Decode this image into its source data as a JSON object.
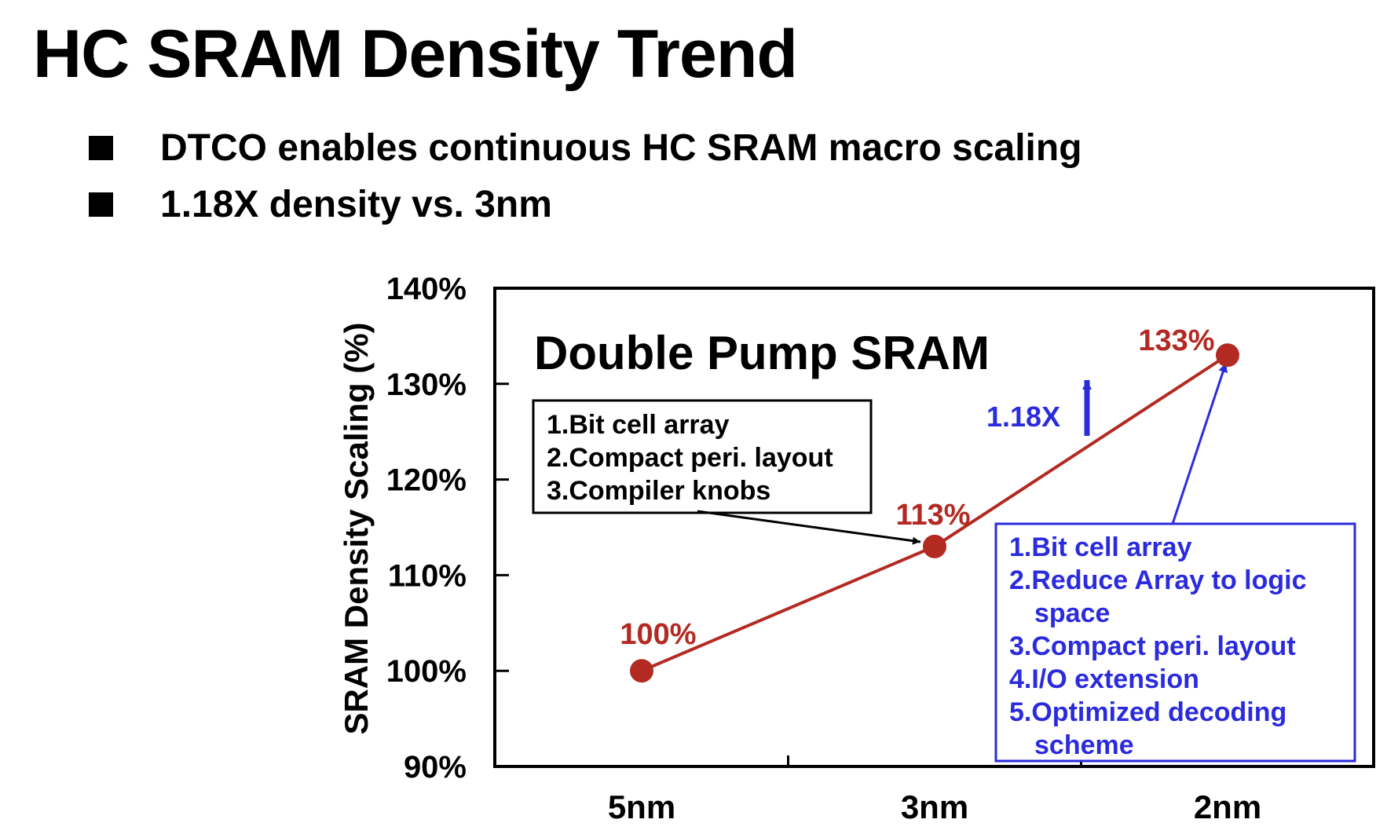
{
  "slide": {
    "title": "HC SRAM Density Trend",
    "bullets": [
      "DTCO enables continuous HC SRAM macro scaling",
      "1.18X density vs. 3nm"
    ]
  },
  "chart_data": {
    "type": "line",
    "title": "Double Pump SRAM",
    "xlabel": "",
    "ylabel": "SRAM Density Scaling (%)",
    "categories": [
      "5nm",
      "3nm",
      "2nm"
    ],
    "series": [
      {
        "values": [
          100,
          113,
          133
        ],
        "data_labels": [
          "100%",
          "113%",
          "133%"
        ],
        "color": "#b22a22"
      }
    ],
    "ylim": [
      90,
      140
    ],
    "yticks": [
      90,
      100,
      110,
      120,
      130,
      140
    ],
    "ytick_labels": [
      "90%",
      "100%",
      "110%",
      "120%",
      "130%",
      "140%"
    ],
    "grid": false,
    "annotations": {
      "ratio_label": "1.18X",
      "ratio_color": "#2b2bde",
      "box_3nm": {
        "items": [
          "1.Bit cell array",
          "2.Compact peri. layout",
          "3.Compiler knobs"
        ],
        "color": "#000000",
        "points_to": "3nm"
      },
      "box_2nm": {
        "items": [
          "1.Bit cell array",
          "2.Reduce Array to logic",
          "space",
          "3.Compact peri. layout",
          "4.I/O extension",
          "5.Optimized decoding",
          "scheme"
        ],
        "color": "#2b2bde",
        "points_to": "2nm"
      }
    }
  }
}
